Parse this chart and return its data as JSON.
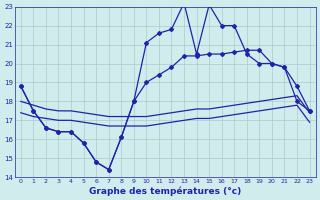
{
  "title": "Graphe des températures (°c)",
  "x_labels": [
    "0",
    "1",
    "2",
    "3",
    "4",
    "5",
    "6",
    "7",
    "8",
    "9",
    "10",
    "11",
    "12",
    "13",
    "14",
    "15",
    "16",
    "17",
    "18",
    "19",
    "20",
    "21",
    "22",
    "23"
  ],
  "x_values": [
    0,
    1,
    2,
    3,
    4,
    5,
    6,
    7,
    8,
    9,
    10,
    11,
    12,
    13,
    14,
    15,
    16,
    17,
    18,
    19,
    20,
    21,
    22,
    23
  ],
  "ylim": [
    14,
    23
  ],
  "yticks": [
    14,
    15,
    16,
    17,
    18,
    19,
    20,
    21,
    22,
    23
  ],
  "line1_x": [
    0,
    1,
    2,
    3,
    4,
    5,
    6,
    7,
    8,
    9,
    10,
    11,
    12,
    13,
    14,
    15,
    16,
    17,
    18,
    19,
    20,
    21,
    22,
    23
  ],
  "line1_y": [
    18.8,
    17.5,
    16.6,
    16.4,
    16.4,
    15.8,
    14.8,
    14.4,
    16.1,
    18.0,
    21.1,
    21.6,
    21.8,
    23.2,
    20.5,
    23.1,
    22.0,
    22.0,
    20.5,
    20.0,
    20.0,
    19.8,
    18.0,
    17.5
  ],
  "line2_x": [
    0,
    1,
    2,
    3,
    4,
    5,
    6,
    7,
    8,
    9,
    10,
    11,
    12,
    13,
    14,
    15,
    16,
    17,
    18,
    19,
    20,
    21,
    22,
    23
  ],
  "line2_y": [
    18.8,
    17.5,
    16.6,
    16.4,
    16.4,
    15.8,
    14.8,
    14.4,
    16.1,
    18.0,
    19.0,
    19.4,
    19.8,
    20.4,
    20.4,
    20.5,
    20.5,
    20.6,
    20.7,
    20.7,
    20.0,
    19.8,
    18.8,
    17.5
  ],
  "line3_x": [
    0,
    1,
    2,
    3,
    4,
    5,
    6,
    7,
    8,
    9,
    10,
    11,
    12,
    13,
    14,
    15,
    16,
    17,
    18,
    19,
    20,
    21,
    22,
    23
  ],
  "line3_y": [
    18.0,
    17.8,
    17.6,
    17.5,
    17.5,
    17.4,
    17.3,
    17.2,
    17.2,
    17.2,
    17.2,
    17.3,
    17.4,
    17.5,
    17.6,
    17.6,
    17.7,
    17.8,
    17.9,
    18.0,
    18.1,
    18.2,
    18.3,
    17.4
  ],
  "line4_x": [
    0,
    1,
    2,
    3,
    4,
    5,
    6,
    7,
    8,
    9,
    10,
    11,
    12,
    13,
    14,
    15,
    16,
    17,
    18,
    19,
    20,
    21,
    22,
    23
  ],
  "line4_y": [
    17.4,
    17.2,
    17.1,
    17.0,
    17.0,
    16.9,
    16.8,
    16.7,
    16.7,
    16.7,
    16.7,
    16.8,
    16.9,
    17.0,
    17.1,
    17.1,
    17.2,
    17.3,
    17.4,
    17.5,
    17.6,
    17.7,
    17.8,
    16.9
  ],
  "line_color": "#2222aa",
  "bg_color": "#d0ecec",
  "grid_color": "#aacccc",
  "xlabel_color": "#2222aa"
}
